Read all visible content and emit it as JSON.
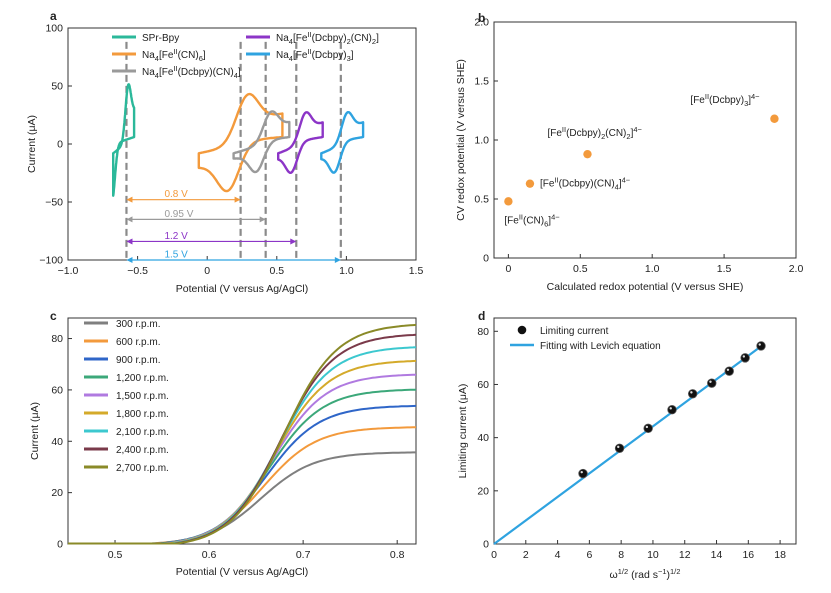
{
  "chart_data": [
    {
      "id": "a",
      "type": "line",
      "panel_label": "a",
      "xlabel": "Potential (V versus Ag/AgCl)",
      "ylabel": "Current (μA)",
      "xlim": [
        -1.0,
        1.5
      ],
      "ylim": [
        -100,
        100
      ],
      "xticks": [
        "−1.0",
        "−0.5",
        "0",
        "0.5",
        "1.0",
        "1.5"
      ],
      "xtick_values": [
        -1.0,
        -0.5,
        0,
        0.5,
        1.0,
        1.5
      ],
      "yticks": [
        "100",
        "50",
        "0",
        "−50",
        "−100"
      ],
      "ytick_values": [
        100,
        50,
        0,
        -50,
        -100
      ],
      "legend": [
        {
          "label": "SPr-Bpy",
          "color": "#2bb89a"
        },
        {
          "label": "Na4[FeII(CN)6]",
          "color": "#f39a3c"
        },
        {
          "label": "Na4[FeII(Dcbpy)(CN)4]",
          "color": "#9a9a9a"
        },
        {
          "label": "Na4[FeII(Dcbpy)2(CN)2]",
          "color": "#8c35c7"
        },
        {
          "label": "Na4[FeII(Dcbpy)3]",
          "color": "#2fa3e0"
        }
      ],
      "cv_curves": [
        {
          "name": "SPr-Bpy",
          "color": "#2bb89a",
          "center": -0.6,
          "half_width": 0.075,
          "amp": 52,
          "e1": -0.57,
          "e2": -0.68
        },
        {
          "name": "Na4[FeII(CN)6]",
          "color": "#f39a3c",
          "center": 0.24,
          "half_width": 0.3,
          "amp": 45,
          "e1": 0.28,
          "e2": 0.16
        },
        {
          "name": "Na4[FeII(Dcbpy)(CN)4]",
          "color": "#9a9a9a",
          "center": 0.39,
          "half_width": 0.2,
          "amp": 28,
          "e1": 0.45,
          "e2": 0.36
        },
        {
          "name": "Na4[FeII(Dcbpy)2(CN)2]",
          "color": "#8c35c7",
          "center": 0.67,
          "half_width": 0.16,
          "amp": 28,
          "e1": 0.7,
          "e2": 0.61
        },
        {
          "name": "Na4[FeII(Dcbpy)3]",
          "color": "#2fa3e0",
          "center": 0.97,
          "half_width": 0.15,
          "amp": 28,
          "e1": 1.0,
          "e2": 0.92
        }
      ],
      "dashed_lines_x": [
        -0.58,
        0.24,
        0.42,
        0.64,
        0.96
      ],
      "gaps": [
        {
          "label": "0.8 V",
          "from": -0.58,
          "to": 0.24,
          "y": -48,
          "color": "#f39a3c"
        },
        {
          "label": "0.95 V",
          "from": -0.58,
          "to": 0.42,
          "y": -65,
          "color": "#9a9a9a"
        },
        {
          "label": "1.2 V",
          "from": -0.58,
          "to": 0.64,
          "y": -84,
          "color": "#8c35c7"
        },
        {
          "label": "1.5 V",
          "from": -0.58,
          "to": 0.96,
          "y": -100,
          "color": "#2fa3e0"
        }
      ]
    },
    {
      "id": "b",
      "type": "scatter",
      "panel_label": "b",
      "xlabel": "Calculated redox potential (V versus SHE)",
      "ylabel": "CV redox potential (V versus SHE)",
      "xlim": [
        -0.1,
        2.0
      ],
      "ylim": [
        0,
        2.0
      ],
      "xticks": [
        "0",
        "0.5",
        "1.0",
        "1.5",
        "2.0"
      ],
      "xtick_values": [
        0,
        0.5,
        1.0,
        1.5,
        2.0
      ],
      "yticks": [
        "0",
        "0.5",
        "1.0",
        "1.5",
        "2.0"
      ],
      "ytick_values": [
        0,
        0.5,
        1.0,
        1.5,
        2.0
      ],
      "color": "#f39a3c",
      "points": [
        {
          "x": 0.0,
          "y": 0.48,
          "label": "[FeII(CN)6]4−"
        },
        {
          "x": 0.15,
          "y": 0.63,
          "label": "[FeII(Dcbpy)(CN)4]4−"
        },
        {
          "x": 0.55,
          "y": 0.88,
          "label": "[FeII(Dcbpy)2(CN)2]4−"
        },
        {
          "x": 1.85,
          "y": 1.18,
          "label": "[FeII(Dcbpy)3]4−"
        }
      ]
    },
    {
      "id": "c",
      "type": "line",
      "panel_label": "c",
      "xlabel": "Potential (V versus Ag/AgCl)",
      "ylabel": "Current (μA)",
      "xlim": [
        0.45,
        0.82
      ],
      "ylim": [
        0,
        88
      ],
      "xticks": [
        "0.5",
        "0.6",
        "0.7",
        "0.8"
      ],
      "xtick_values": [
        0.5,
        0.6,
        0.7,
        0.8
      ],
      "yticks": [
        "0",
        "20",
        "40",
        "60",
        "80"
      ],
      "ytick_values": [
        0,
        20,
        40,
        60,
        80
      ],
      "series": [
        {
          "name": "300 r.p.m.",
          "color": "#7f7f7f",
          "limit": 36
        },
        {
          "name": "600 r.p.m.",
          "color": "#f39a3c",
          "limit": 46
        },
        {
          "name": "900 r.p.m.",
          "color": "#2f66c8",
          "limit": 54.5
        },
        {
          "name": "1,200 r.p.m.",
          "color": "#3ca87a",
          "limit": 61
        },
        {
          "name": "1,500 r.p.m.",
          "color": "#b07ae0",
          "limit": 67
        },
        {
          "name": "1,800 r.p.m.",
          "color": "#d4aa2a",
          "limit": 72.5
        },
        {
          "name": "2,100 r.p.m.",
          "color": "#3cc8cf",
          "limit": 78
        },
        {
          "name": "2,400 r.p.m.",
          "color": "#7a3a4a",
          "limit": 83
        },
        {
          "name": "2,700 r.p.m.",
          "color": "#8a8a28",
          "limit": 87
        }
      ],
      "curve_model": {
        "midpoint": 0.655,
        "steepness": 0.028
      }
    },
    {
      "id": "d",
      "type": "scatter",
      "panel_label": "d",
      "xlabel": "ω1/2 (rad s−1)1/2",
      "ylabel": "Limiting current (μA)",
      "xlim": [
        0,
        19
      ],
      "ylim": [
        0,
        85
      ],
      "xticks": [
        "0",
        "2",
        "4",
        "6",
        "8",
        "10",
        "12",
        "14",
        "16",
        "18"
      ],
      "xtick_values": [
        0,
        2,
        4,
        6,
        8,
        10,
        12,
        14,
        16,
        18
      ],
      "yticks": [
        "0",
        "20",
        "40",
        "60",
        "80"
      ],
      "ytick_values": [
        0,
        20,
        40,
        60,
        80
      ],
      "legend": [
        {
          "label": "Limiting current",
          "kind": "marker",
          "color": "#222222"
        },
        {
          "label": "Fitting with Levich equation",
          "kind": "line",
          "color": "#2fa3e0"
        }
      ],
      "points": [
        {
          "x": 5.6,
          "y": 26.5
        },
        {
          "x": 7.9,
          "y": 36
        },
        {
          "x": 9.7,
          "y": 43.5
        },
        {
          "x": 11.2,
          "y": 50.5
        },
        {
          "x": 12.5,
          "y": 56.5
        },
        {
          "x": 13.7,
          "y": 60.5
        },
        {
          "x": 14.8,
          "y": 65
        },
        {
          "x": 15.8,
          "y": 70
        },
        {
          "x": 16.8,
          "y": 74.5
        }
      ],
      "fit": {
        "x0": 0,
        "y0": 0,
        "x1": 16.9,
        "y1": 74.8
      }
    }
  ]
}
